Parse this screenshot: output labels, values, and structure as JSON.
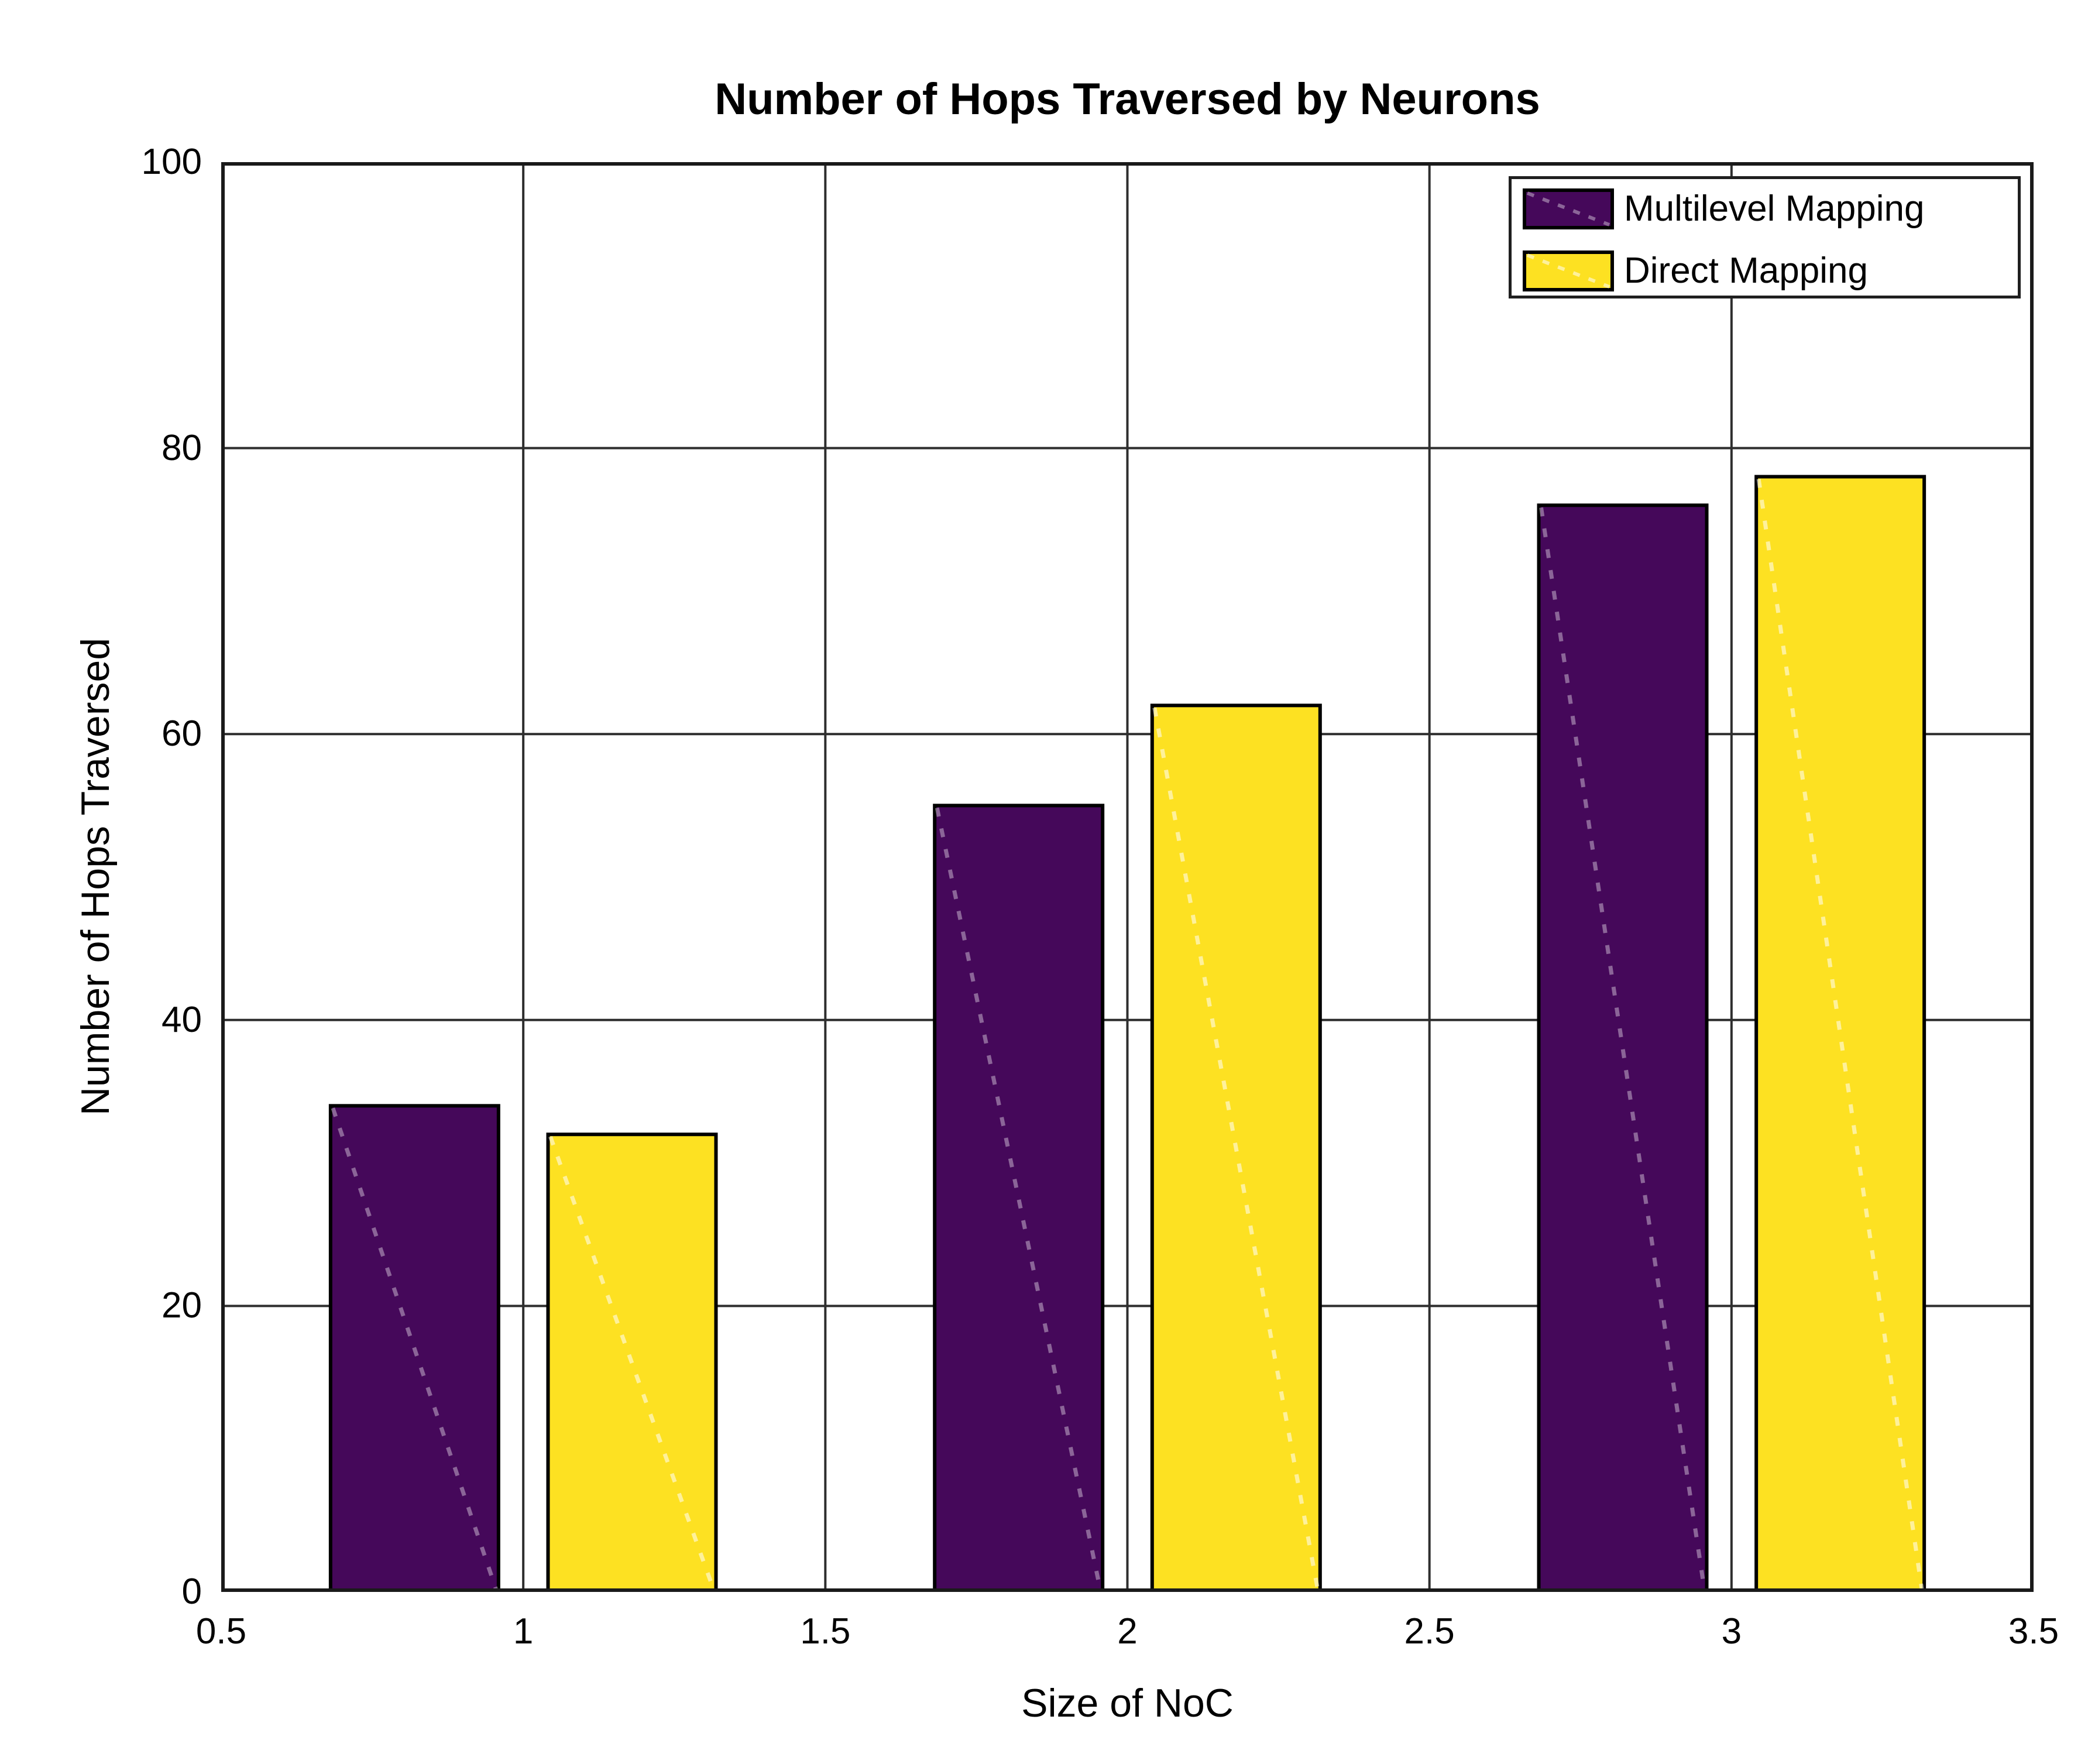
{
  "chart_data": {
    "type": "bar",
    "title": "Number of Hops Traversed by Neurons",
    "xlabel": "Size of NoC",
    "ylabel": "Number of Hops Traversed",
    "categories": [
      1,
      2,
      3
    ],
    "series": [
      {
        "name": "Multilevel Mapping",
        "values": [
          34,
          55,
          76
        ],
        "color": "#45085a",
        "edge_color": "#000000",
        "hatch_color": "rgba(255,255,255,0.38)"
      },
      {
        "name": "Direct Mapping",
        "values": [
          32,
          62,
          78
        ],
        "color": "#fde122",
        "edge_color": "#000000",
        "hatch_color": "rgba(255,255,255,0.55)"
      }
    ],
    "xlim": [
      0.5,
      3.5
    ],
    "ylim": [
      0,
      100
    ],
    "x_tick_values": [
      0.5,
      1,
      1.5,
      2,
      2.5,
      3,
      3.5
    ],
    "x_tick_labels": [
      "0.5",
      "1",
      "1.5",
      "2",
      "2.5",
      "3",
      "3.5"
    ],
    "y_tick_values": [
      0,
      20,
      40,
      60,
      80,
      100
    ],
    "y_tick_labels": [
      "0",
      "20",
      "40",
      "60",
      "80",
      "100"
    ],
    "grid": true,
    "legend_position": "top-right",
    "bar_width": 0.278,
    "bar_offset": 0.18,
    "hatch_style": "single-dashed-diagonal"
  },
  "colors": {
    "background": "#ffffff",
    "grid": "#2e2e2e",
    "axis_box": "#1a1a1a",
    "text": "#000000",
    "legend_border": "#1f1f1f"
  }
}
